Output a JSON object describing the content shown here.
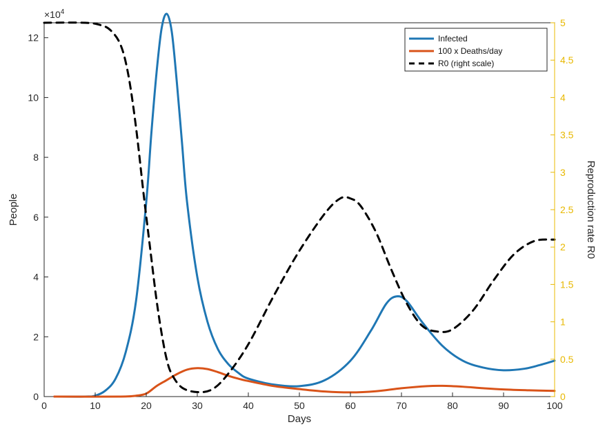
{
  "chart_data": {
    "type": "line",
    "title": "",
    "xlabel": "Days",
    "ylabel": "People",
    "ylabel_right": "Reproduction rate R0",
    "y_exponent_label": "×10",
    "y_exponent_power": "4",
    "xlim": [
      0,
      100
    ],
    "ylim": [
      0,
      12.5
    ],
    "ylim_right": [
      0,
      5
    ],
    "x_ticks": [
      0,
      10,
      20,
      30,
      40,
      50,
      60,
      70,
      80,
      90,
      100
    ],
    "y_ticks": [
      0,
      2,
      4,
      6,
      8,
      10,
      12
    ],
    "y_right_ticks": [
      "0",
      "0.5",
      "1",
      "1.5",
      "2",
      "2.5",
      "3",
      "3.5",
      "4",
      "4.5",
      "5"
    ],
    "grid": false,
    "legend_position": "top-right",
    "series": [
      {
        "name": "Infected",
        "axis": "left",
        "color": "#1f77b4",
        "style": "solid",
        "points": [
          [
            2,
            0
          ],
          [
            8,
            0
          ],
          [
            10,
            0.03
          ],
          [
            12,
            0.2
          ],
          [
            14,
            0.6
          ],
          [
            16,
            1.5
          ],
          [
            18,
            3.2
          ],
          [
            20,
            6.5
          ],
          [
            21,
            8.8
          ],
          [
            22,
            10.8
          ],
          [
            23,
            12.3
          ],
          [
            24,
            12.8
          ],
          [
            25,
            12.2
          ],
          [
            26,
            10.5
          ],
          [
            27,
            8.5
          ],
          [
            28,
            6.5
          ],
          [
            30,
            4
          ],
          [
            32,
            2.5
          ],
          [
            34,
            1.6
          ],
          [
            36,
            1.1
          ],
          [
            38,
            0.8
          ],
          [
            40,
            0.6
          ],
          [
            45,
            0.4
          ],
          [
            50,
            0.35
          ],
          [
            55,
            0.55
          ],
          [
            60,
            1.2
          ],
          [
            64,
            2.2
          ],
          [
            67,
            3.1
          ],
          [
            69,
            3.35
          ],
          [
            71,
            3.2
          ],
          [
            74,
            2.5
          ],
          [
            78,
            1.7
          ],
          [
            82,
            1.2
          ],
          [
            86,
            0.97
          ],
          [
            90,
            0.88
          ],
          [
            94,
            0.93
          ],
          [
            97,
            1.05
          ],
          [
            100,
            1.2
          ]
        ]
      },
      {
        "name": "100 x Deaths/day",
        "axis": "left",
        "color": "#d95319",
        "style": "solid",
        "points": [
          [
            2,
            0
          ],
          [
            15,
            0
          ],
          [
            18,
            0.03
          ],
          [
            20,
            0.1
          ],
          [
            22,
            0.35
          ],
          [
            24,
            0.55
          ],
          [
            26,
            0.75
          ],
          [
            28,
            0.9
          ],
          [
            30,
            0.95
          ],
          [
            32,
            0.92
          ],
          [
            34,
            0.82
          ],
          [
            36,
            0.7
          ],
          [
            38,
            0.6
          ],
          [
            40,
            0.52
          ],
          [
            45,
            0.35
          ],
          [
            50,
            0.25
          ],
          [
            55,
            0.17
          ],
          [
            60,
            0.14
          ],
          [
            65,
            0.18
          ],
          [
            70,
            0.28
          ],
          [
            75,
            0.35
          ],
          [
            78,
            0.36
          ],
          [
            82,
            0.33
          ],
          [
            86,
            0.28
          ],
          [
            90,
            0.24
          ],
          [
            95,
            0.21
          ],
          [
            100,
            0.19
          ]
        ]
      },
      {
        "name": "R0 (right scale)",
        "axis": "right",
        "color": "#000000",
        "style": "dashed",
        "points": [
          [
            0,
            5
          ],
          [
            8,
            5
          ],
          [
            11,
            4.97
          ],
          [
            13,
            4.9
          ],
          [
            15,
            4.7
          ],
          [
            16.5,
            4.3
          ],
          [
            18,
            3.6
          ],
          [
            19.5,
            2.7
          ],
          [
            21,
            1.85
          ],
          [
            22,
            1.3
          ],
          [
            23,
            0.85
          ],
          [
            24,
            0.5
          ],
          [
            25,
            0.3
          ],
          [
            27,
            0.12
          ],
          [
            30,
            0.06
          ],
          [
            33,
            0.1
          ],
          [
            36,
            0.3
          ],
          [
            40,
            0.7
          ],
          [
            45,
            1.35
          ],
          [
            50,
            1.95
          ],
          [
            55,
            2.45
          ],
          [
            58,
            2.65
          ],
          [
            60,
            2.65
          ],
          [
            62,
            2.55
          ],
          [
            65,
            2.2
          ],
          [
            68,
            1.7
          ],
          [
            71,
            1.25
          ],
          [
            74,
            0.95
          ],
          [
            77,
            0.87
          ],
          [
            80,
            0.9
          ],
          [
            84,
            1.15
          ],
          [
            88,
            1.55
          ],
          [
            92,
            1.9
          ],
          [
            96,
            2.08
          ],
          [
            100,
            2.1
          ]
        ]
      }
    ]
  }
}
